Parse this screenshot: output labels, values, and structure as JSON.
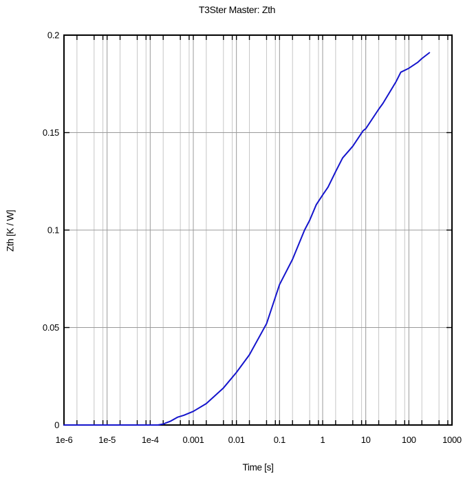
{
  "title": "T3Ster Master: Zth",
  "chart_data": {
    "type": "line",
    "title": "T3Ster Master: Zth",
    "xlabel": "Time [s]",
    "ylabel": "Zth [K / W]",
    "x_scale": "log",
    "y_scale": "linear",
    "xlim": [
      1e-06,
      1000
    ],
    "ylim": [
      0,
      0.2
    ],
    "grid": true,
    "x_tick_labels": [
      "1e-6",
      "1e-5",
      "1e-4",
      "0.001",
      "0.01",
      "0.1",
      "1",
      "10",
      "100",
      "1000"
    ],
    "x_tick_values": [
      1e-06,
      1e-05,
      0.0001,
      0.001,
      0.01,
      0.1,
      1,
      10,
      100,
      1000
    ],
    "y_tick_labels": [
      "0",
      "0.05",
      "0.1",
      "0.15",
      "0.2"
    ],
    "y_tick_values": [
      0,
      0.05,
      0.1,
      0.15,
      0.2
    ],
    "minor_grid_multipliers": [
      2,
      5,
      8
    ],
    "colors": {
      "curve": "#1414cc",
      "axis": "#000000",
      "minor_grid": "#c6c6c6",
      "major_grid": "#999999",
      "background": "#ffffff"
    },
    "series": [
      {
        "name": "Zth",
        "points": [
          [
            1e-06,
            0
          ],
          [
            1e-05,
            0
          ],
          [
            5e-05,
            0
          ],
          [
            0.0001,
            0
          ],
          [
            0.00015,
            0
          ],
          [
            0.0002,
            0.0005
          ],
          [
            0.0003,
            0.002
          ],
          [
            0.00043,
            0.004
          ],
          [
            0.0006,
            0.005
          ],
          [
            0.001,
            0.007
          ],
          [
            0.002,
            0.011
          ],
          [
            0.005,
            0.019
          ],
          [
            0.01,
            0.027
          ],
          [
            0.02,
            0.036
          ],
          [
            0.05,
            0.052
          ],
          [
            0.1,
            0.072
          ],
          [
            0.2,
            0.085
          ],
          [
            0.38,
            0.1
          ],
          [
            0.5,
            0.105
          ],
          [
            0.71,
            0.113
          ],
          [
            1,
            0.118
          ],
          [
            1.33,
            0.122
          ],
          [
            2,
            0.13
          ],
          [
            2.9,
            0.137
          ],
          [
            5,
            0.143
          ],
          [
            8.7,
            0.151
          ],
          [
            10,
            0.152
          ],
          [
            20,
            0.162
          ],
          [
            25,
            0.165
          ],
          [
            50,
            0.176
          ],
          [
            65,
            0.181
          ],
          [
            100,
            0.183
          ],
          [
            160,
            0.186
          ],
          [
            200,
            0.188
          ],
          [
            300,
            0.191
          ]
        ]
      }
    ]
  }
}
